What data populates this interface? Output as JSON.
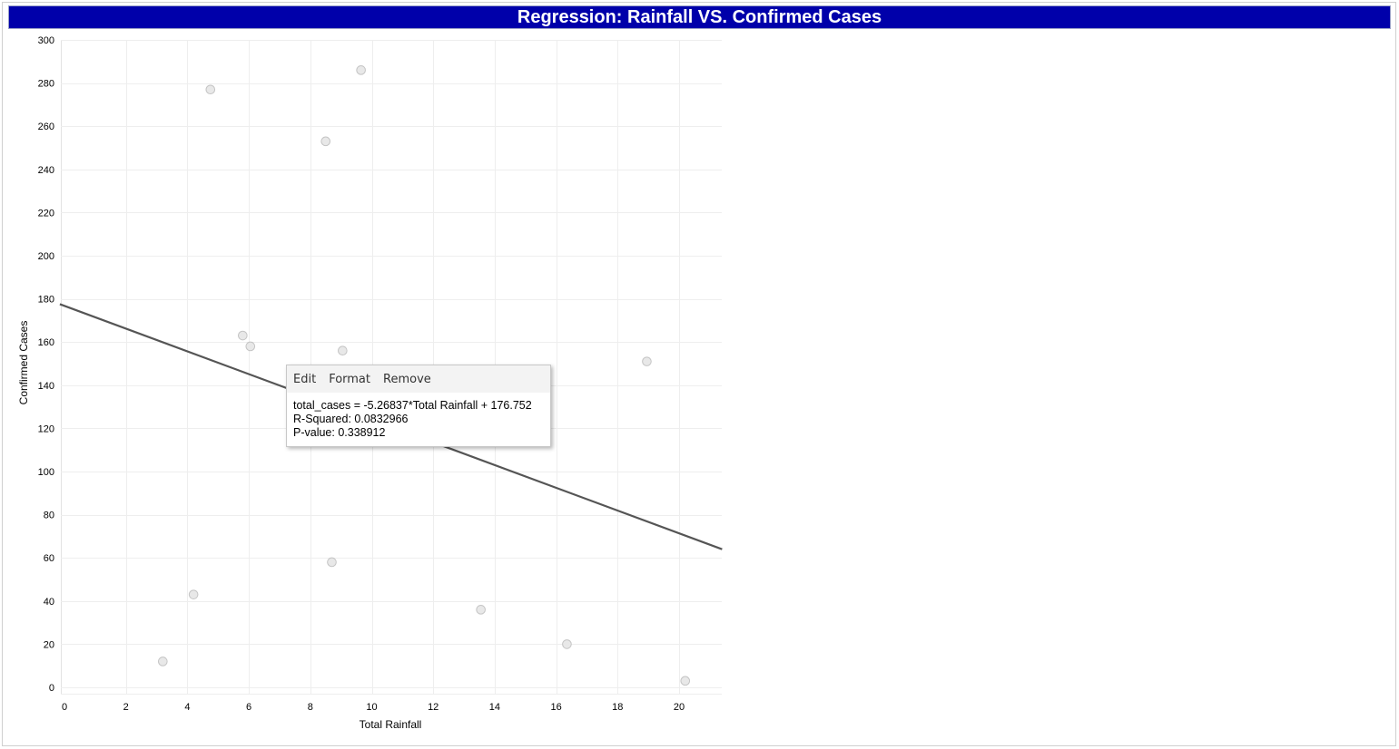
{
  "title": "Regression: Rainfall VS. Confirmed Cases",
  "tooltip": {
    "menu": {
      "edit": "Edit",
      "format": "Format",
      "remove": "Remove"
    },
    "equation": "total_cases = -5.26837*Total Rainfall + 176.752",
    "r_squared": "R-Squared: 0.0832966",
    "p_value": "P-value: 0.338912"
  },
  "chart_data": {
    "type": "scatter",
    "title": "Regression: Rainfall VS. Confirmed Cases",
    "xlabel": "Total Rainfall",
    "ylabel": "Confirmed Cases",
    "xlim": [
      0,
      21.4
    ],
    "ylim": [
      0,
      300
    ],
    "x_ticks": [
      0,
      2,
      4,
      6,
      8,
      10,
      12,
      14,
      16,
      18,
      20
    ],
    "y_ticks": [
      0,
      20,
      40,
      60,
      80,
      100,
      120,
      140,
      160,
      180,
      200,
      220,
      240,
      260,
      280,
      300
    ],
    "grid": true,
    "points": [
      {
        "x": 3.2,
        "y": 12
      },
      {
        "x": 4.2,
        "y": 43
      },
      {
        "x": 4.75,
        "y": 277
      },
      {
        "x": 5.8,
        "y": 163
      },
      {
        "x": 6.05,
        "y": 158
      },
      {
        "x": 8.5,
        "y": 253
      },
      {
        "x": 8.7,
        "y": 58
      },
      {
        "x": 9.05,
        "y": 156
      },
      {
        "x": 9.65,
        "y": 286
      },
      {
        "x": 13.55,
        "y": 36
      },
      {
        "x": 16.35,
        "y": 20
      },
      {
        "x": 18.95,
        "y": 151
      },
      {
        "x": 20.2,
        "y": 3
      }
    ],
    "trend_line": {
      "slope": -5.26837,
      "intercept": 176.752
    },
    "colors": {
      "point_fill": "#e8e8e8",
      "point_stroke": "#c4c4c4",
      "trend": "#555555",
      "grid": "#eeeeee",
      "title_bg": "#0000aa"
    }
  }
}
